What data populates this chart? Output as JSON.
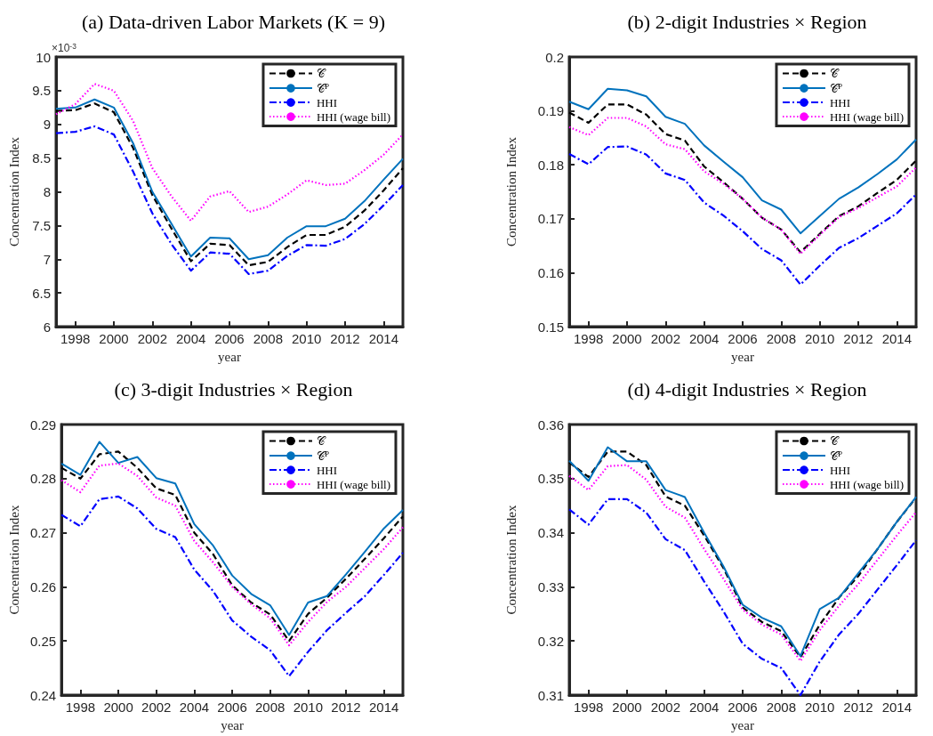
{
  "chart_data": [
    {
      "type": "line",
      "title": "(a) Data-driven Labor Markets (K = 9)",
      "xlabel": "year",
      "ylabel": "Concentration Index",
      "annotations": [
        "×10$^{-3}$"
      ],
      "x": [
        1997,
        1998,
        1999,
        2000,
        2001,
        2002,
        2003,
        2004,
        2005,
        2006,
        2007,
        2008,
        2009,
        2010,
        2011,
        2012,
        2013,
        2014,
        2015
      ],
      "xlim": [
        1997,
        2015
      ],
      "xticks": [
        1998,
        2000,
        2002,
        2004,
        2006,
        2008,
        2010,
        2012,
        2014
      ],
      "ylim": [
        6,
        10
      ],
      "yticks": [
        6,
        6.5,
        7,
        7.5,
        8,
        8.5,
        9,
        9.5,
        10
      ],
      "grid": false,
      "legend": "top right",
      "marker": "none",
      "series": [
        {
          "name": "𝒞",
          "color": "#000000",
          "line_style": "dashed",
          "values": [
            9.2,
            9.21,
            9.31,
            9.18,
            8.65,
            7.95,
            7.45,
            6.97,
            7.23,
            7.21,
            6.91,
            6.96,
            7.18,
            7.36,
            7.36,
            7.48,
            7.72,
            8.02,
            8.35
          ]
        },
        {
          "name": "𝒞$^{P}$",
          "color": "#0072bd",
          "line_style": "solid",
          "values": [
            9.23,
            9.25,
            9.37,
            9.25,
            8.72,
            8.0,
            7.52,
            7.04,
            7.32,
            7.31,
            7.0,
            7.06,
            7.32,
            7.49,
            7.49,
            7.6,
            7.86,
            8.18,
            8.49
          ]
        },
        {
          "name": "HHI",
          "color": "#0000ff",
          "line_style": "dashdot",
          "values": [
            8.87,
            8.89,
            8.97,
            8.85,
            8.3,
            7.68,
            7.22,
            6.83,
            7.1,
            7.08,
            6.78,
            6.83,
            7.05,
            7.21,
            7.2,
            7.3,
            7.52,
            7.8,
            8.1
          ]
        },
        {
          "name": "HHI (wage bill)",
          "color": "#ff00ff",
          "line_style": "dotted",
          "values": [
            9.15,
            9.3,
            9.6,
            9.5,
            9.05,
            8.35,
            7.93,
            7.57,
            7.93,
            8.01,
            7.7,
            7.78,
            7.96,
            8.17,
            8.1,
            8.12,
            8.32,
            8.55,
            8.85
          ]
        }
      ]
    },
    {
      "type": "line",
      "title": "(b) 2-digit Industries × Region",
      "xlabel": "year",
      "ylabel": "Concentration Index",
      "x": [
        1997,
        1998,
        1999,
        2000,
        2001,
        2002,
        2003,
        2004,
        2005,
        2006,
        2007,
        2008,
        2009,
        2010,
        2011,
        2012,
        2013,
        2014,
        2015
      ],
      "xlim": [
        1997,
        2015
      ],
      "xticks": [
        1998,
        2000,
        2002,
        2004,
        2006,
        2008,
        2010,
        2012,
        2014
      ],
      "ylim": [
        0.15,
        0.2
      ],
      "yticks": [
        0.15,
        0.16,
        0.17,
        0.18,
        0.19,
        0.2
      ],
      "grid": false,
      "legend": "top right",
      "marker": "none",
      "series": [
        {
          "name": "𝒞",
          "color": "#000000",
          "line_style": "dashed",
          "values": [
            0.1897,
            0.1878,
            0.1912,
            0.1912,
            0.1893,
            0.1857,
            0.1845,
            0.1797,
            0.1768,
            0.1737,
            0.1702,
            0.168,
            0.1638,
            0.1672,
            0.1705,
            0.1723,
            0.1748,
            0.1772,
            0.1808
          ]
        },
        {
          "name": "𝒞$^{P}$",
          "color": "#0072bd",
          "line_style": "solid",
          "values": [
            0.1917,
            0.1903,
            0.1941,
            0.1938,
            0.1927,
            0.1889,
            0.1876,
            0.1836,
            0.1806,
            0.1777,
            0.1734,
            0.1717,
            0.1673,
            0.1705,
            0.1737,
            0.1758,
            0.1783,
            0.181,
            0.1847
          ]
        },
        {
          "name": "HHI",
          "color": "#0000ff",
          "line_style": "dashdot",
          "values": [
            0.182,
            0.1801,
            0.1833,
            0.1834,
            0.1819,
            0.1784,
            0.1772,
            0.173,
            0.1706,
            0.1677,
            0.1644,
            0.1623,
            0.1578,
            0.1613,
            0.1646,
            0.1664,
            0.1687,
            0.171,
            0.1745
          ]
        },
        {
          "name": "HHI (wage bill)",
          "color": "#ff00ff",
          "line_style": "dotted",
          "values": [
            0.187,
            0.1855,
            0.1887,
            0.1887,
            0.1871,
            0.1838,
            0.1829,
            0.1788,
            0.1765,
            0.1737,
            0.1702,
            0.168,
            0.1635,
            0.167,
            0.1703,
            0.172,
            0.174,
            0.176,
            0.1795
          ]
        }
      ]
    },
    {
      "type": "line",
      "title": "(c) 3-digit Industries × Region",
      "xlabel": "year",
      "ylabel": "Concentration Index",
      "x": [
        1997,
        1998,
        1999,
        2000,
        2001,
        2002,
        2003,
        2004,
        2005,
        2006,
        2007,
        2008,
        2009,
        2010,
        2011,
        2012,
        2013,
        2014,
        2015
      ],
      "xlim": [
        1997,
        2015
      ],
      "xticks": [
        1998,
        2000,
        2002,
        2004,
        2006,
        2008,
        2010,
        2012,
        2014
      ],
      "ylim": [
        0.24,
        0.29
      ],
      "yticks": [
        0.24,
        0.25,
        0.26,
        0.27,
        0.28,
        0.29
      ],
      "grid": false,
      "legend": "top right",
      "marker": "none",
      "series": [
        {
          "name": "𝒞",
          "color": "#000000",
          "line_style": "dashed",
          "values": [
            0.282,
            0.28,
            0.2845,
            0.285,
            0.282,
            0.2782,
            0.277,
            0.27,
            0.266,
            0.2603,
            0.2571,
            0.2549,
            0.25,
            0.255,
            0.258,
            0.2615,
            0.2652,
            0.269,
            0.273
          ]
        },
        {
          "name": "𝒞$^{P}$",
          "color": "#0072bd",
          "line_style": "solid",
          "values": [
            0.2828,
            0.2807,
            0.2868,
            0.2829,
            0.284,
            0.2801,
            0.2791,
            0.2716,
            0.2676,
            0.2621,
            0.2587,
            0.2566,
            0.2511,
            0.2571,
            0.2583,
            0.2623,
            0.2665,
            0.2708,
            0.2742
          ]
        },
        {
          "name": "HHI",
          "color": "#0000ff",
          "line_style": "dashdot",
          "values": [
            0.2733,
            0.2712,
            0.2762,
            0.2767,
            0.2745,
            0.2707,
            0.2692,
            0.2632,
            0.2592,
            0.2538,
            0.2508,
            0.2483,
            0.2435,
            0.248,
            0.252,
            0.2552,
            0.2583,
            0.2622,
            0.2663
          ]
        },
        {
          "name": "HHI (wage bill)",
          "color": "#ff00ff",
          "line_style": "dotted",
          "values": [
            0.2797,
            0.2775,
            0.2824,
            0.2828,
            0.2805,
            0.2765,
            0.275,
            0.2685,
            0.2645,
            0.26,
            0.2568,
            0.2542,
            0.2492,
            0.2535,
            0.2572,
            0.26,
            0.2635,
            0.267,
            0.271
          ]
        }
      ]
    },
    {
      "type": "line",
      "title": "(d) 4-digit Industries × Region",
      "xlabel": "year",
      "ylabel": "Concentration Index",
      "x": [
        1997,
        1998,
        1999,
        2000,
        2001,
        2002,
        2003,
        2004,
        2005,
        2006,
        2007,
        2008,
        2009,
        2010,
        2011,
        2012,
        2013,
        2014,
        2015
      ],
      "xlim": [
        1997,
        2015
      ],
      "xticks": [
        1998,
        2000,
        2002,
        2004,
        2006,
        2008,
        2010,
        2012,
        2014
      ],
      "ylim": [
        0.31,
        0.36
      ],
      "yticks": [
        0.31,
        0.32,
        0.33,
        0.34,
        0.35,
        0.36
      ],
      "grid": false,
      "legend": "top right",
      "marker": "none",
      "series": [
        {
          "name": "𝒞",
          "color": "#000000",
          "line_style": "dashed",
          "values": [
            0.353,
            0.3503,
            0.355,
            0.355,
            0.3525,
            0.3467,
            0.345,
            0.3395,
            0.3335,
            0.3262,
            0.3235,
            0.3218,
            0.317,
            0.323,
            0.328,
            0.332,
            0.337,
            0.342,
            0.3465
          ]
        },
        {
          "name": "𝒞$^{P}$",
          "color": "#0072bd",
          "line_style": "solid",
          "values": [
            0.3533,
            0.3496,
            0.3558,
            0.3532,
            0.3532,
            0.3479,
            0.3466,
            0.34,
            0.3338,
            0.3267,
            0.3243,
            0.3227,
            0.3172,
            0.3259,
            0.328,
            0.3325,
            0.337,
            0.342,
            0.3466
          ]
        },
        {
          "name": "HHI",
          "color": "#0000ff",
          "line_style": "dashdot",
          "values": [
            0.3443,
            0.3415,
            0.3462,
            0.3462,
            0.3437,
            0.3388,
            0.3368,
            0.331,
            0.3255,
            0.3195,
            0.3167,
            0.315,
            0.31,
            0.3162,
            0.3212,
            0.325,
            0.3295,
            0.334,
            0.3386
          ]
        },
        {
          "name": "HHI (wage bill)",
          "color": "#ff00ff",
          "line_style": "dotted",
          "values": [
            0.3505,
            0.3479,
            0.3523,
            0.3525,
            0.3498,
            0.3448,
            0.3428,
            0.337,
            0.3315,
            0.3258,
            0.323,
            0.3212,
            0.3163,
            0.322,
            0.3265,
            0.3305,
            0.335,
            0.3395,
            0.3438
          ]
        }
      ]
    }
  ]
}
